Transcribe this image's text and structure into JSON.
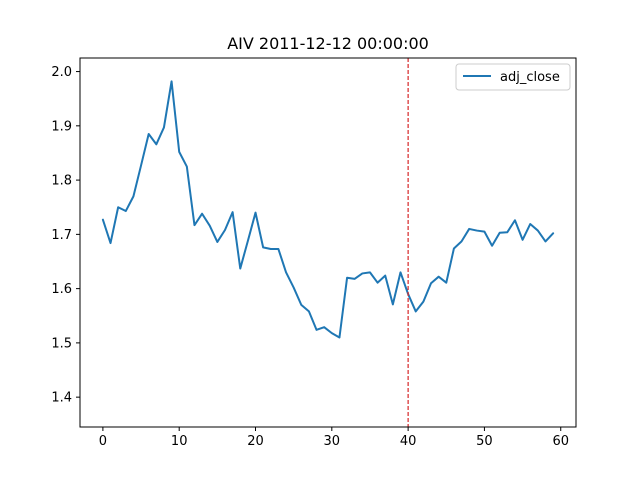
{
  "chart_data": {
    "type": "line",
    "title": "AIV 2011-12-12 00:00:00",
    "xlabel": "",
    "ylabel": "",
    "xlim": [
      -3,
      62
    ],
    "ylim": [
      1.345,
      2.025
    ],
    "x_ticks": [
      0,
      10,
      20,
      30,
      40,
      50,
      60
    ],
    "y_ticks": [
      1.4,
      1.5,
      1.6,
      1.7,
      1.8,
      1.9,
      2.0
    ],
    "x_tick_labels": [
      "0",
      "10",
      "20",
      "30",
      "40",
      "50",
      "60"
    ],
    "y_tick_labels": [
      "1.4",
      "1.5",
      "1.6",
      "1.7",
      "1.8",
      "1.9",
      "2.0"
    ],
    "grid": false,
    "legend_position": "top-right",
    "series": [
      {
        "name": "adj_close",
        "color": "#1f77b4",
        "x": [
          0,
          1,
          2,
          3,
          4,
          5,
          6,
          7,
          8,
          9,
          10,
          11,
          12,
          13,
          14,
          15,
          16,
          17,
          18,
          19,
          20,
          21,
          22,
          23,
          24,
          25,
          26,
          27,
          28,
          29,
          30,
          31,
          32,
          33,
          34,
          35,
          36,
          37,
          38,
          39,
          40,
          41,
          42,
          43,
          44,
          45,
          46,
          47,
          48,
          49,
          50,
          51,
          52,
          53,
          54,
          55,
          56,
          57,
          58,
          59
        ],
        "values": [
          1.727,
          1.684,
          1.75,
          1.743,
          1.77,
          1.827,
          1.885,
          1.866,
          1.897,
          1.982,
          1.852,
          1.825,
          1.717,
          1.738,
          1.716,
          1.686,
          1.708,
          1.741,
          1.637,
          1.688,
          1.74,
          1.676,
          1.673,
          1.673,
          1.63,
          1.602,
          1.57,
          1.558,
          1.524,
          1.529,
          1.518,
          1.51,
          1.62,
          1.618,
          1.628,
          1.63,
          1.611,
          1.624,
          1.571,
          1.63,
          1.59,
          1.558,
          1.576,
          1.61,
          1.622,
          1.611,
          1.674,
          1.687,
          1.71,
          1.707,
          1.705,
          1.679,
          1.703,
          1.704,
          1.726,
          1.69,
          1.719,
          1.707,
          1.687,
          1.702
        ]
      }
    ],
    "reference_line": {
      "x": 40,
      "color": "#d62728",
      "style": "dashed"
    }
  }
}
